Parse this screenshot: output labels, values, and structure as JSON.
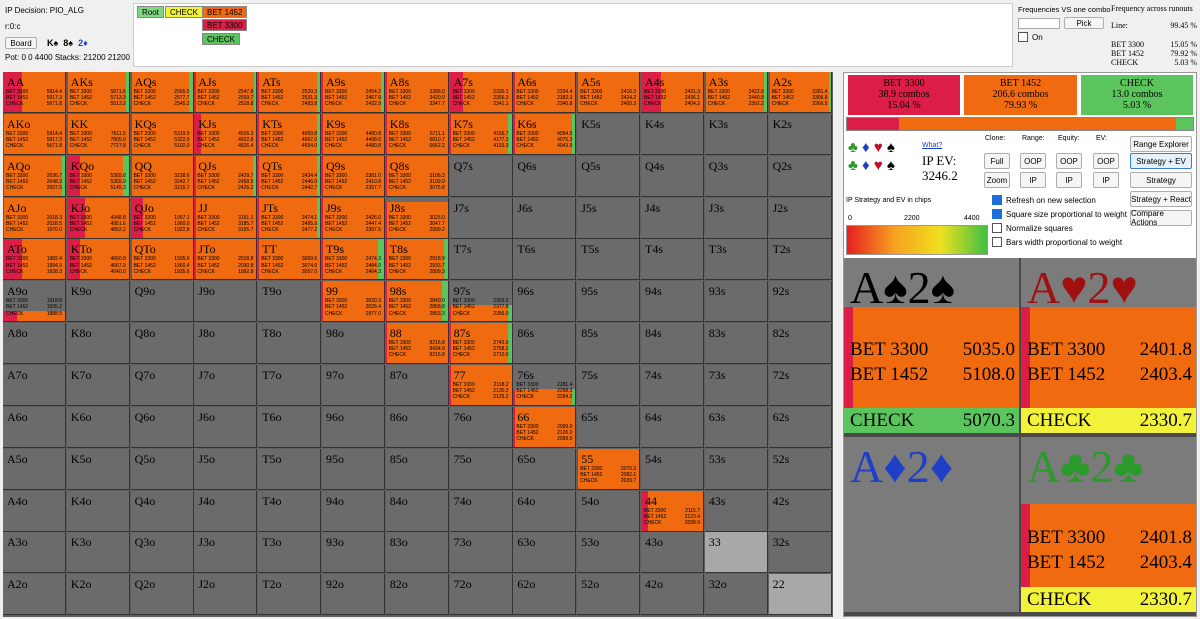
{
  "header": {
    "ip_decision": "IP Decision:  PIO_ALG",
    "node_label": "r:0:c",
    "board_button": "Board",
    "board_cards": [
      {
        "rank": "K",
        "suit": "♠",
        "color": "#000"
      },
      {
        "rank": "8",
        "suit": "♠",
        "color": "#000"
      },
      {
        "rank": "2",
        "suit": "♦",
        "color": "#1f3fc9"
      }
    ],
    "pot": "Pot: 0 0 4400 Stacks: 21200 21200"
  },
  "tree": {
    "root": "Root",
    "check": "CHECK",
    "bet_big": "BET 1452",
    "bet_sub": "BET 3300",
    "check_sub": "CHECK"
  },
  "combo_panel": {
    "title": "Frequencies VS one combo",
    "pick": "Pick",
    "on": "On"
  },
  "freq": {
    "title": "Frequency across runouts",
    "line_label": "Line:",
    "line_val": "99.45 %",
    "rows": [
      {
        "a": "BET 3300",
        "v": "15.05 %"
      },
      {
        "a": "BET 1452",
        "v": "79.92 %"
      },
      {
        "a": "CHECK",
        "v": "5.03 %"
      }
    ]
  },
  "summary": [
    {
      "label": "BET 3300",
      "combos": "38.9 combos",
      "pct": "15.04 %",
      "color": "#dc1e46"
    },
    {
      "label": "BET 1452",
      "combos": "206.6 combos",
      "pct": "79.93 %",
      "color": "#f06a10"
    },
    {
      "label": "CHECK",
      "combos": "13.0 combos",
      "pct": "5.03 %",
      "color": "#5cc45c"
    }
  ],
  "summary_split": [
    0.1504,
    0.7993,
    0.0503
  ],
  "controls": {
    "what": "What?",
    "ip_ev_label": "IP EV:",
    "ip_ev_value": "3246.2",
    "clone": "Clone:",
    "range": "Range:",
    "equity": "Equity:",
    "ev": "EV:",
    "full": "Full",
    "zoom": "Zoom",
    "oop": "OOP",
    "ip": "IP",
    "range_explorer": "Range Explorer",
    "strategy_ev": "Strategy + EV",
    "strategy": "Strategy",
    "strategy_react": "Strategy + React",
    "compare_actions": "Compare Actions",
    "legend_title": "IP Strategy and EV in chips",
    "legend_min": "0",
    "legend_mid": "2200",
    "legend_max": "4400"
  },
  "options": [
    {
      "label": "Refresh on new selection",
      "checked": true
    },
    {
      "label": "Square size proportional to weight",
      "checked": true
    },
    {
      "label": "Normalize squares",
      "checked": false
    },
    {
      "label": "Bars width proportional to weight",
      "checked": false
    }
  ],
  "cards": [
    {
      "hand": "A♠2♠",
      "color": "#000",
      "rows": [
        {
          "a": "BET 3300",
          "v": "5035.0"
        },
        {
          "a": "BET 1452",
          "v": "5108.0"
        },
        {
          "a": "CHECK",
          "v": "5070.3"
        }
      ],
      "mix": [
        0.05,
        0.55,
        0.4
      ],
      "weight": 0.72
    },
    {
      "hand": "A♥2♥",
      "color": "#a01010",
      "rows": [
        {
          "a": "BET 3300",
          "v": "2401.8"
        },
        {
          "a": "BET 1452",
          "v": "2403.4"
        },
        {
          "a": "CHECK",
          "v": "2330.7"
        }
      ],
      "mix": [
        0.05,
        0.8,
        0.15
      ],
      "weight": 0.72
    },
    {
      "hand": "A♦2♦",
      "color": "#1f3fc9",
      "rows": [],
      "mix": [
        0,
        0,
        0
      ],
      "weight": 0
    },
    {
      "hand": "A♣2♣",
      "color": "#2a9a2a",
      "rows": [
        {
          "a": "BET 3300",
          "v": "2401.8"
        },
        {
          "a": "BET 1452",
          "v": "2403.4"
        },
        {
          "a": "CHECK",
          "v": "2330.7"
        }
      ],
      "mix": [
        0.05,
        0.8,
        0.15
      ],
      "weight": 0.62
    }
  ],
  "grid": {
    "names": [
      [
        "AA",
        "AKs",
        "AQs",
        "AJs",
        "ATs",
        "A9s",
        "A8s",
        "A7s",
        "A6s",
        "A5s",
        "A4s",
        "A3s",
        "A2s"
      ],
      [
        "AKo",
        "KK",
        "KQs",
        "KJs",
        "KTs",
        "K9s",
        "K8s",
        "K7s",
        "K6s",
        "K5s",
        "K4s",
        "K3s",
        "K2s"
      ],
      [
        "AQo",
        "KQo",
        "QQ",
        "QJs",
        "QTs",
        "Q9s",
        "Q8s",
        "Q7s",
        "Q6s",
        "Q5s",
        "Q4s",
        "Q3s",
        "Q2s"
      ],
      [
        "AJo",
        "KJo",
        "QJo",
        "JJ",
        "JTs",
        "J9s",
        "J8s",
        "J7s",
        "J6s",
        "J5s",
        "J4s",
        "J3s",
        "J2s"
      ],
      [
        "ATo",
        "KTo",
        "QTo",
        "JTo",
        "TT",
        "T9s",
        "T8s",
        "T7s",
        "T6s",
        "T5s",
        "T4s",
        "T3s",
        "T2s"
      ],
      [
        "A9o",
        "K9o",
        "Q9o",
        "J9o",
        "T9o",
        "99",
        "98s",
        "97s",
        "96s",
        "95s",
        "94s",
        "93s",
        "92s"
      ],
      [
        "A8o",
        "K8o",
        "Q8o",
        "J8o",
        "T8o",
        "98o",
        "88",
        "87s",
        "86s",
        "85s",
        "84s",
        "83s",
        "82s"
      ],
      [
        "A7o",
        "K7o",
        "Q7o",
        "J7o",
        "T7o",
        "97o",
        "87o",
        "77",
        "76s",
        "75s",
        "74s",
        "73s",
        "72s"
      ],
      [
        "A6o",
        "K6o",
        "Q6o",
        "J6o",
        "T6o",
        "96o",
        "86o",
        "76o",
        "66",
        "65s",
        "64s",
        "63s",
        "62s"
      ],
      [
        "A5o",
        "K5o",
        "Q5o",
        "J5o",
        "T5o",
        "95o",
        "85o",
        "75o",
        "65o",
        "55",
        "54s",
        "53s",
        "52s"
      ],
      [
        "A4o",
        "K4o",
        "Q4o",
        "J4o",
        "T4o",
        "94o",
        "84o",
        "74o",
        "64o",
        "54o",
        "44",
        "43s",
        "42s"
      ],
      [
        "A3o",
        "K3o",
        "Q3o",
        "J3o",
        "T3o",
        "93o",
        "83o",
        "73o",
        "63o",
        "53o",
        "43o",
        "33",
        "32s"
      ],
      [
        "A2o",
        "K2o",
        "Q2o",
        "J2o",
        "T2o",
        "92o",
        "82o",
        "72o",
        "62o",
        "52o",
        "42o",
        "32o",
        "22"
      ]
    ],
    "strats": {
      "AA": {
        "mix": [
          0.3,
          0.7,
          0
        ],
        "ev": [
          "5914.4",
          "5917.3",
          "5671.8"
        ],
        "w": 1
      },
      "AKs": {
        "mix": [
          0.02,
          0.93,
          0.05
        ],
        "ev": [
          "5871.6",
          "5713.3",
          "5513.2"
        ],
        "w": 1
      },
      "AQs": {
        "mix": [
          0.02,
          0.92,
          0.06
        ],
        "ev": [
          "2565.5",
          "2577.7",
          "2545.2"
        ],
        "w": 1
      },
      "AJs": {
        "mix": [
          0.02,
          0.94,
          0.04
        ],
        "ev": [
          "2547.8",
          "2559.7",
          "2518.8"
        ],
        "w": 1
      },
      "ATs": {
        "mix": [
          0.02,
          0.93,
          0.05
        ],
        "ev": [
          "2520.3",
          "2531.3",
          "2483.8"
        ],
        "w": 1
      },
      "A9s": {
        "mix": [
          0.02,
          0.93,
          0.05
        ],
        "ev": [
          "2454.2",
          "2467.9",
          "2432.9"
        ],
        "w": 1
      },
      "A8s": {
        "mix": [
          0.02,
          0.98,
          0
        ],
        "ev": [
          "3386.0",
          "3420.0",
          "3347.7"
        ],
        "w": 1
      },
      "A7s": {
        "mix": [
          0.22,
          0.78,
          0
        ],
        "ev": [
          "2330.1",
          "2356.3",
          "2341.1"
        ],
        "w": 1
      },
      "A6s": {
        "mix": [
          0.02,
          0.98,
          0
        ],
        "ev": [
          "2334.4",
          "2382.3",
          "2340.8"
        ],
        "w": 1
      },
      "A5s": {
        "mix": [
          0.02,
          0.98,
          0
        ],
        "ev": [
          "2416.3",
          "2424.2",
          "2400.3"
        ],
        "w": 1
      },
      "A4s": {
        "mix": [
          0.32,
          0.68,
          0
        ],
        "ev": [
          "2431.3",
          "2436.1",
          "2404.2"
        ],
        "w": 1
      },
      "A3s": {
        "mix": [
          0.02,
          0.93,
          0.05
        ],
        "ev": [
          "2422.9",
          "2440.8",
          "2392.2"
        ],
        "w": 1
      },
      "A2s": {
        "mix": [
          0.02,
          0.96,
          0.02
        ],
        "ev": [
          "3281.4",
          "3306.8",
          "3266.5"
        ],
        "w": 1
      },
      "AKo": {
        "mix": [
          0.02,
          0.98,
          0
        ],
        "ev": [
          "5914.4",
          "5917.3",
          "5671.8"
        ],
        "w": 1
      },
      "KK": {
        "mix": [
          0.02,
          0.98,
          0
        ],
        "ev": [
          "7611.5",
          "7805.0",
          "7727.8"
        ],
        "w": 1
      },
      "KQs": {
        "mix": [
          0.02,
          0.98,
          0
        ],
        "ev": [
          "5319.9",
          "5322.9",
          "5102.0"
        ],
        "w": 1
      },
      "KJs": {
        "mix": [
          0.1,
          0.9,
          0
        ],
        "ev": [
          "4916.3",
          "4922.8",
          "4826.4"
        ],
        "w": 1
      },
      "KTs": {
        "mix": [
          0.02,
          0.93,
          0.05
        ],
        "ev": [
          "4659.8",
          "4667.0",
          "4654.0"
        ],
        "w": 1
      },
      "K9s": {
        "mix": [
          0.02,
          0.98,
          0
        ],
        "ev": [
          "4480.8",
          "4498.6",
          "4480.8"
        ],
        "w": 1
      },
      "K8s": {
        "mix": [
          0.02,
          0.98,
          0
        ],
        "ev": [
          "6711.1",
          "6810.7",
          "6662.2"
        ],
        "w": 1
      },
      "K7s": {
        "mix": [
          0.02,
          0.93,
          0.05
        ],
        "ev": [
          "4156.7",
          "4177.3",
          "4153.3"
        ],
        "w": 1
      },
      "K6s": {
        "mix": [
          0.02,
          0.92,
          0.06
        ],
        "ev": [
          "4054.5",
          "4075.3",
          "4043.9"
        ],
        "w": 1
      },
      "AQo": {
        "mix": [
          0.02,
          0.93,
          0.05
        ],
        "ev": [
          "2036.7",
          "2048.3",
          "2007.5"
        ],
        "w": 1
      },
      "KQo": {
        "mix": [
          0.22,
          0.68,
          0.1
        ],
        "ev": [
          "5365.8",
          "5365.9",
          "5145.3"
        ],
        "w": 1
      },
      "QQ": {
        "mix": [
          0.02,
          0.98,
          0
        ],
        "ev": [
          "3238.6",
          "3242.7",
          "3215.7"
        ],
        "w": 1
      },
      "QJs": {
        "mix": [
          0.02,
          0.93,
          0.05
        ],
        "ev": [
          "2429.7",
          "2458.5",
          "2426.2"
        ],
        "w": 1
      },
      "QTs": {
        "mix": [
          0.02,
          0.93,
          0.05
        ],
        "ev": [
          "2434.4",
          "2446.0",
          "2442.7"
        ],
        "w": 1
      },
      "Q9s": {
        "mix": [
          0.02,
          0.98,
          0
        ],
        "ev": [
          "2381.0",
          "2410.8",
          "2397.7"
        ],
        "w": 1
      },
      "Q8s": {
        "mix": [
          0.02,
          0.98,
          0
        ],
        "ev": [
          "3108.3",
          "3109.9",
          "3075.8"
        ],
        "w": 1
      },
      "AJo": {
        "mix": [
          0.02,
          0.98,
          0
        ],
        "ev": [
          "2018.3",
          "2028.5",
          "1970.0"
        ],
        "w": 1
      },
      "KJo": {
        "mix": [
          0.3,
          0.7,
          0
        ],
        "ev": [
          "4948.8",
          "4951.6",
          "4862.2"
        ],
        "w": 1
      },
      "QJo": {
        "mix": [
          0.2,
          0.8,
          0
        ],
        "ev": [
          "1957.1",
          "1960.0",
          "1922.8"
        ],
        "w": 1
      },
      "JJ": {
        "mix": [
          0.02,
          0.98,
          0
        ],
        "ev": [
          "3151.1",
          "3185.7",
          "3155.7"
        ],
        "w": 1
      },
      "JTs": {
        "mix": [
          0.02,
          0.93,
          0.05
        ],
        "ev": [
          "2474.1",
          "2495.9",
          "2477.2"
        ],
        "w": 1
      },
      "J9s": {
        "mix": [
          0.02,
          0.98,
          0
        ],
        "ev": [
          "2426.0",
          "2447.4",
          "2397.6"
        ],
        "w": 1
      },
      "J8s": {
        "mix": [
          0.02,
          0.98,
          0
        ],
        "ev": [
          "3025.0",
          "3047.7",
          "2999.2"
        ],
        "w": 0.9
      },
      "ATo": {
        "mix": [
          0.3,
          0.7,
          0
        ],
        "ev": [
          "1982.4",
          "1994.9",
          "1928.3"
        ],
        "w": 1
      },
      "KTo": {
        "mix": [
          0.22,
          0.78,
          0
        ],
        "ev": [
          "4660.8",
          "4667.9",
          "4640.0"
        ],
        "w": 1
      },
      "QTo": {
        "mix": [
          0.02,
          0.98,
          0
        ],
        "ev": [
          "1935.6",
          "1960.4",
          "1935.6"
        ],
        "w": 1
      },
      "JTo": {
        "mix": [
          0.02,
          0.98,
          0
        ],
        "ev": [
          "2018.8",
          "2030.8",
          "1992.8"
        ],
        "w": 1
      },
      "TT": {
        "mix": [
          0.02,
          0.98,
          0
        ],
        "ev": [
          "3069.6",
          "3074.6",
          "3057.0"
        ],
        "w": 1
      },
      "T9s": {
        "mix": [
          0.02,
          0.88,
          0.1
        ],
        "ev": [
          "2474.3",
          "2484.0",
          "2464.3"
        ],
        "w": 1
      },
      "T8s": {
        "mix": [
          0.02,
          0.92,
          0.06
        ],
        "ev": [
          "2918.9",
          "2933.7",
          "2899.3"
        ],
        "w": 1
      },
      "A9o": {
        "mix": [
          0.22,
          0.78,
          0
        ],
        "ev": [
          "1918.8",
          "1935.2",
          "1888.5"
        ],
        "w": 0.25
      },
      "99": {
        "mix": [
          0.02,
          0.98,
          0
        ],
        "ev": [
          "3020.3",
          "3026.4",
          "2977.0"
        ],
        "w": 1
      },
      "98s": {
        "mix": [
          0.02,
          0.88,
          0.1
        ],
        "ev": [
          "2840.0",
          "2868.8",
          "2853.3"
        ],
        "w": 1
      },
      "97s": {
        "mix": [
          0.02,
          0.93,
          0.05
        ],
        "ev": [
          "2369.2",
          "2377.8",
          "2356.0"
        ],
        "w": 0.4
      },
      "88": {
        "mix": [
          0.02,
          0.98,
          0
        ],
        "ev": [
          "8216.8",
          "8434.9",
          "8216.8"
        ],
        "w": 1
      },
      "87s": {
        "mix": [
          0.02,
          0.92,
          0.06
        ],
        "ev": [
          "2743.9",
          "2758.2",
          "2710.0"
        ],
        "w": 1
      },
      "77": {
        "mix": [
          0.02,
          0.98,
          0
        ],
        "ev": [
          "2118.2",
          "2130.2",
          "2125.2"
        ],
        "w": 1
      },
      "76s": {
        "mix": [
          0.02,
          0.92,
          0.06
        ],
        "ev": [
          "2281.4",
          "2298.3",
          "2284.2"
        ],
        "w": 0.4
      },
      "66": {
        "mix": [
          0.02,
          0.98,
          0
        ],
        "ev": [
          "2099.0",
          "2126.0",
          "2099.0"
        ],
        "w": 1
      },
      "55": {
        "mix": [
          0.02,
          0.98,
          0
        ],
        "ev": [
          "2070.3",
          "2082.1",
          "2039.7"
        ],
        "w": 1
      },
      "44": {
        "mix": [
          0.12,
          0.88,
          0
        ],
        "ev": [
          "2115.7",
          "2123.4",
          "2098.9"
        ],
        "w": 1
      }
    },
    "light_cells": [
      "33",
      "22"
    ]
  }
}
